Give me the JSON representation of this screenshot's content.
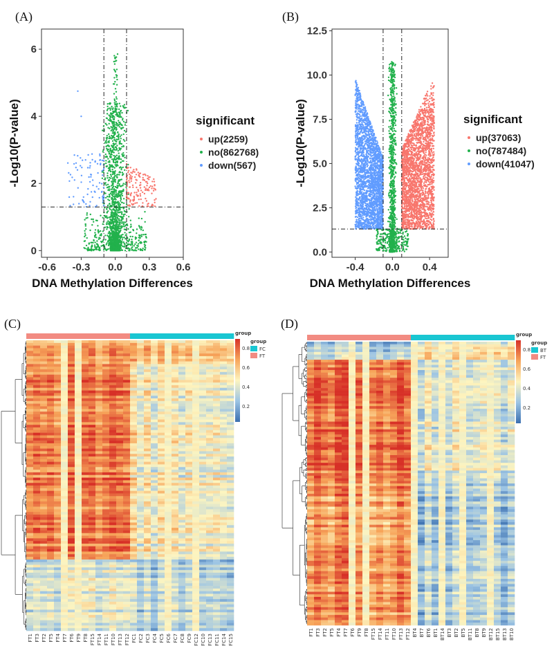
{
  "chart_data": [
    {
      "panel": "(A)",
      "type": "scatter",
      "xlabel": "DNA Methylation Differences",
      "ylabel": "-Log10(P-value)",
      "xlim": [
        -0.65,
        0.6
      ],
      "ylim": [
        -0.2,
        6.6
      ],
      "xticks": [
        -0.6,
        -0.3,
        0.0,
        0.3,
        0.6
      ],
      "xtick_labels": [
        "-0.6",
        "-0.3",
        "0.0",
        "0.3",
        "0.6"
      ],
      "yticks": [
        0,
        2,
        4,
        6
      ],
      "ytick_labels": [
        "0",
        "2",
        "4",
        "6"
      ],
      "threshold_lines": {
        "x": [
          -0.1,
          0.1
        ],
        "y": 1.3
      },
      "legend_title": "significant",
      "series": [
        {
          "name": "up(2259)",
          "color": "#f8766d"
        },
        {
          "name": "no(862768)",
          "color": "#22b14c"
        },
        {
          "name": "down(567)",
          "color": "#619cff"
        }
      ],
      "shape": {
        "no_span_x": 0.13,
        "no_peak_y": 6.1,
        "up_xmax": 0.36,
        "up_ymax": 2.6,
        "down_xmin": -0.42,
        "down_ymax": 4.8
      }
    },
    {
      "panel": "(B)",
      "type": "scatter",
      "xlabel": "DNA Methylation Differences",
      "ylabel": "-Log10(P-value)",
      "xlim": [
        -0.65,
        0.6
      ],
      "ylim": [
        -0.3,
        12.6
      ],
      "xticks": [
        -0.4,
        0.0,
        0.4
      ],
      "xtick_labels": [
        "-0.4",
        "0.0",
        "0.4"
      ],
      "yticks": [
        0,
        2.5,
        5,
        7.5,
        10,
        12.5
      ],
      "ytick_labels": [
        "0.0",
        "2.5",
        "5.0",
        "7.5",
        "10.0",
        "12.5"
      ],
      "threshold_lines": {
        "x": [
          -0.1,
          0.1
        ],
        "y": 1.3
      },
      "legend_title": "significant",
      "series": [
        {
          "name": "up(37063)",
          "color": "#f8766d"
        },
        {
          "name": "no(787484)",
          "color": "#22b14c"
        },
        {
          "name": "down(41047)",
          "color": "#619cff"
        }
      ],
      "shape": {
        "up_xmax": 0.45,
        "up_ymax": 11.0,
        "down_xmin": -0.4,
        "down_ymax": 10.3,
        "no_peak_y": 11.2
      }
    },
    {
      "panel": "(C)",
      "type": "heatmap",
      "columns": [
        "FT1",
        "FT3",
        "FT2",
        "FT5",
        "FT4",
        "FT7",
        "FT6",
        "FT9",
        "FT8",
        "FT15",
        "FT14",
        "FT11",
        "FT10",
        "FT13",
        "FT12",
        "FC1",
        "FC2",
        "FC3",
        "FC4",
        "FC5",
        "FC6",
        "FC7",
        "FC8",
        "FC9",
        "FC12",
        "FC10",
        "FC13",
        "FC11",
        "FC14",
        "FC15"
      ],
      "group_legend_title": "group",
      "groups": [
        {
          "name": "FC",
          "color": "#19c6d2"
        },
        {
          "name": "FT",
          "color": "#f28b82"
        }
      ],
      "colorbar_title": "group",
      "colorbar_ticks": [
        "0.8",
        "0.6",
        "0.4",
        "0.2"
      ],
      "colorscale": [
        "#3a6fb0",
        "#9cc4e4",
        "#fdf5c0",
        "#f7a55a",
        "#d73027"
      ]
    },
    {
      "panel": "(D)",
      "type": "heatmap",
      "columns": [
        "FT1",
        "FT3",
        "FT2",
        "FT5",
        "FT4",
        "FT7",
        "FT6",
        "FT9",
        "FT8",
        "FT15",
        "FT14",
        "FT11",
        "FT10",
        "FT13",
        "FT12",
        "BT4",
        "BT7",
        "BT6",
        "BT1",
        "BT14",
        "BT3",
        "BT2",
        "BT5",
        "BT11",
        "BT8",
        "BT9",
        "BT12",
        "BT15",
        "BT13",
        "BT10"
      ],
      "group_legend_title": "group",
      "groups": [
        {
          "name": "BT",
          "color": "#19c6d2"
        },
        {
          "name": "FT",
          "color": "#f28b82"
        }
      ],
      "colorbar_title": "group",
      "colorbar_ticks": [
        "0.8",
        "0.6",
        "0.4",
        "0.2"
      ],
      "colorscale": [
        "#3a6fb0",
        "#9cc4e4",
        "#fdf5c0",
        "#f7a55a",
        "#d73027"
      ]
    }
  ]
}
